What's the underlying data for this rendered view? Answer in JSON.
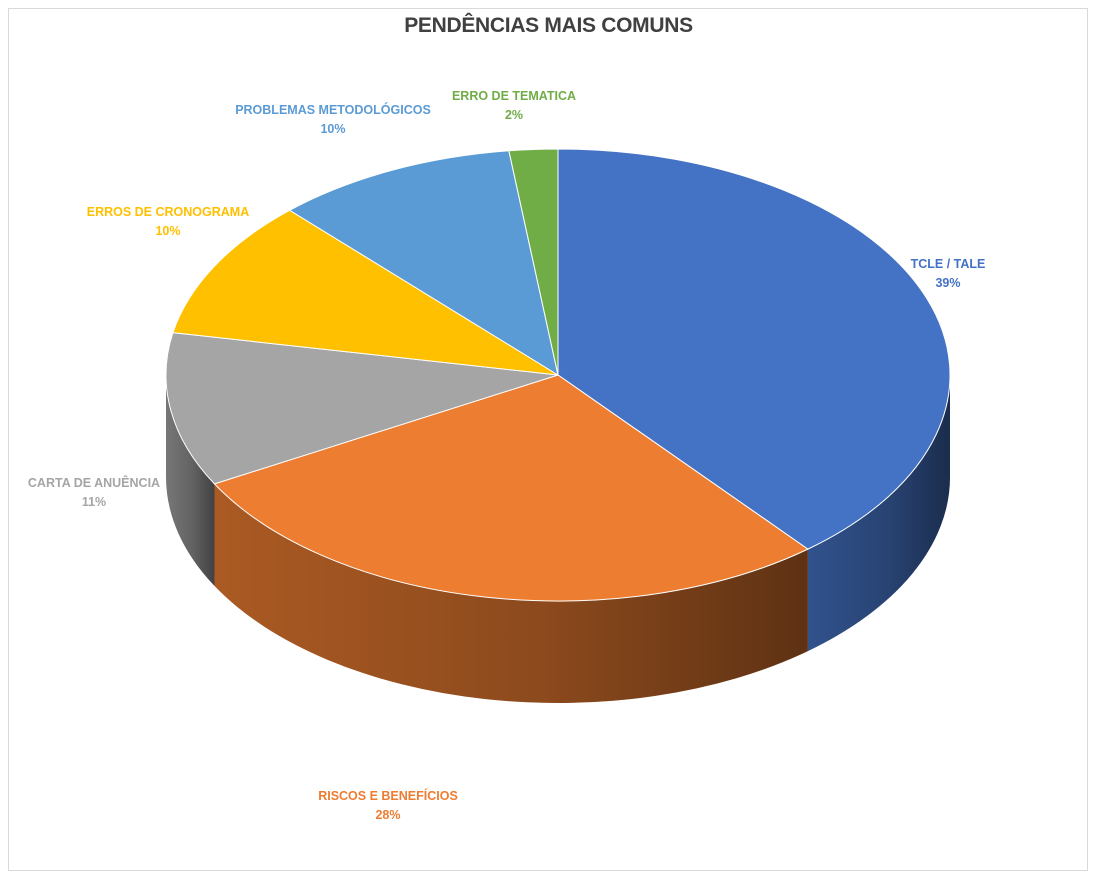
{
  "chart_data": {
    "type": "pie",
    "title": "PENDÊNCIAS MAIS COMUNS",
    "style": "3d",
    "slices": [
      {
        "label": "TCLE / TALE",
        "value": 39,
        "display": "39%",
        "color": "#4472C4"
      },
      {
        "label": "RISCOS E BENEFÍCIOS",
        "value": 28,
        "display": "28%",
        "color": "#ED7D31"
      },
      {
        "label": "CARTA DE ANUÊNCIA",
        "value": 11,
        "display": "11%",
        "color": "#A5A5A5"
      },
      {
        "label": "ERROS DE CRONOGRAMA",
        "value": 10,
        "display": "10%",
        "color": "#FFC000"
      },
      {
        "label": "PROBLEMAS METODOLÓGICOS",
        "value": 10,
        "display": "10%",
        "color": "#5B9BD5"
      },
      {
        "label": "ERRO DE TEMATICA",
        "value": 2,
        "display": "2%",
        "color": "#70AD47"
      }
    ]
  }
}
